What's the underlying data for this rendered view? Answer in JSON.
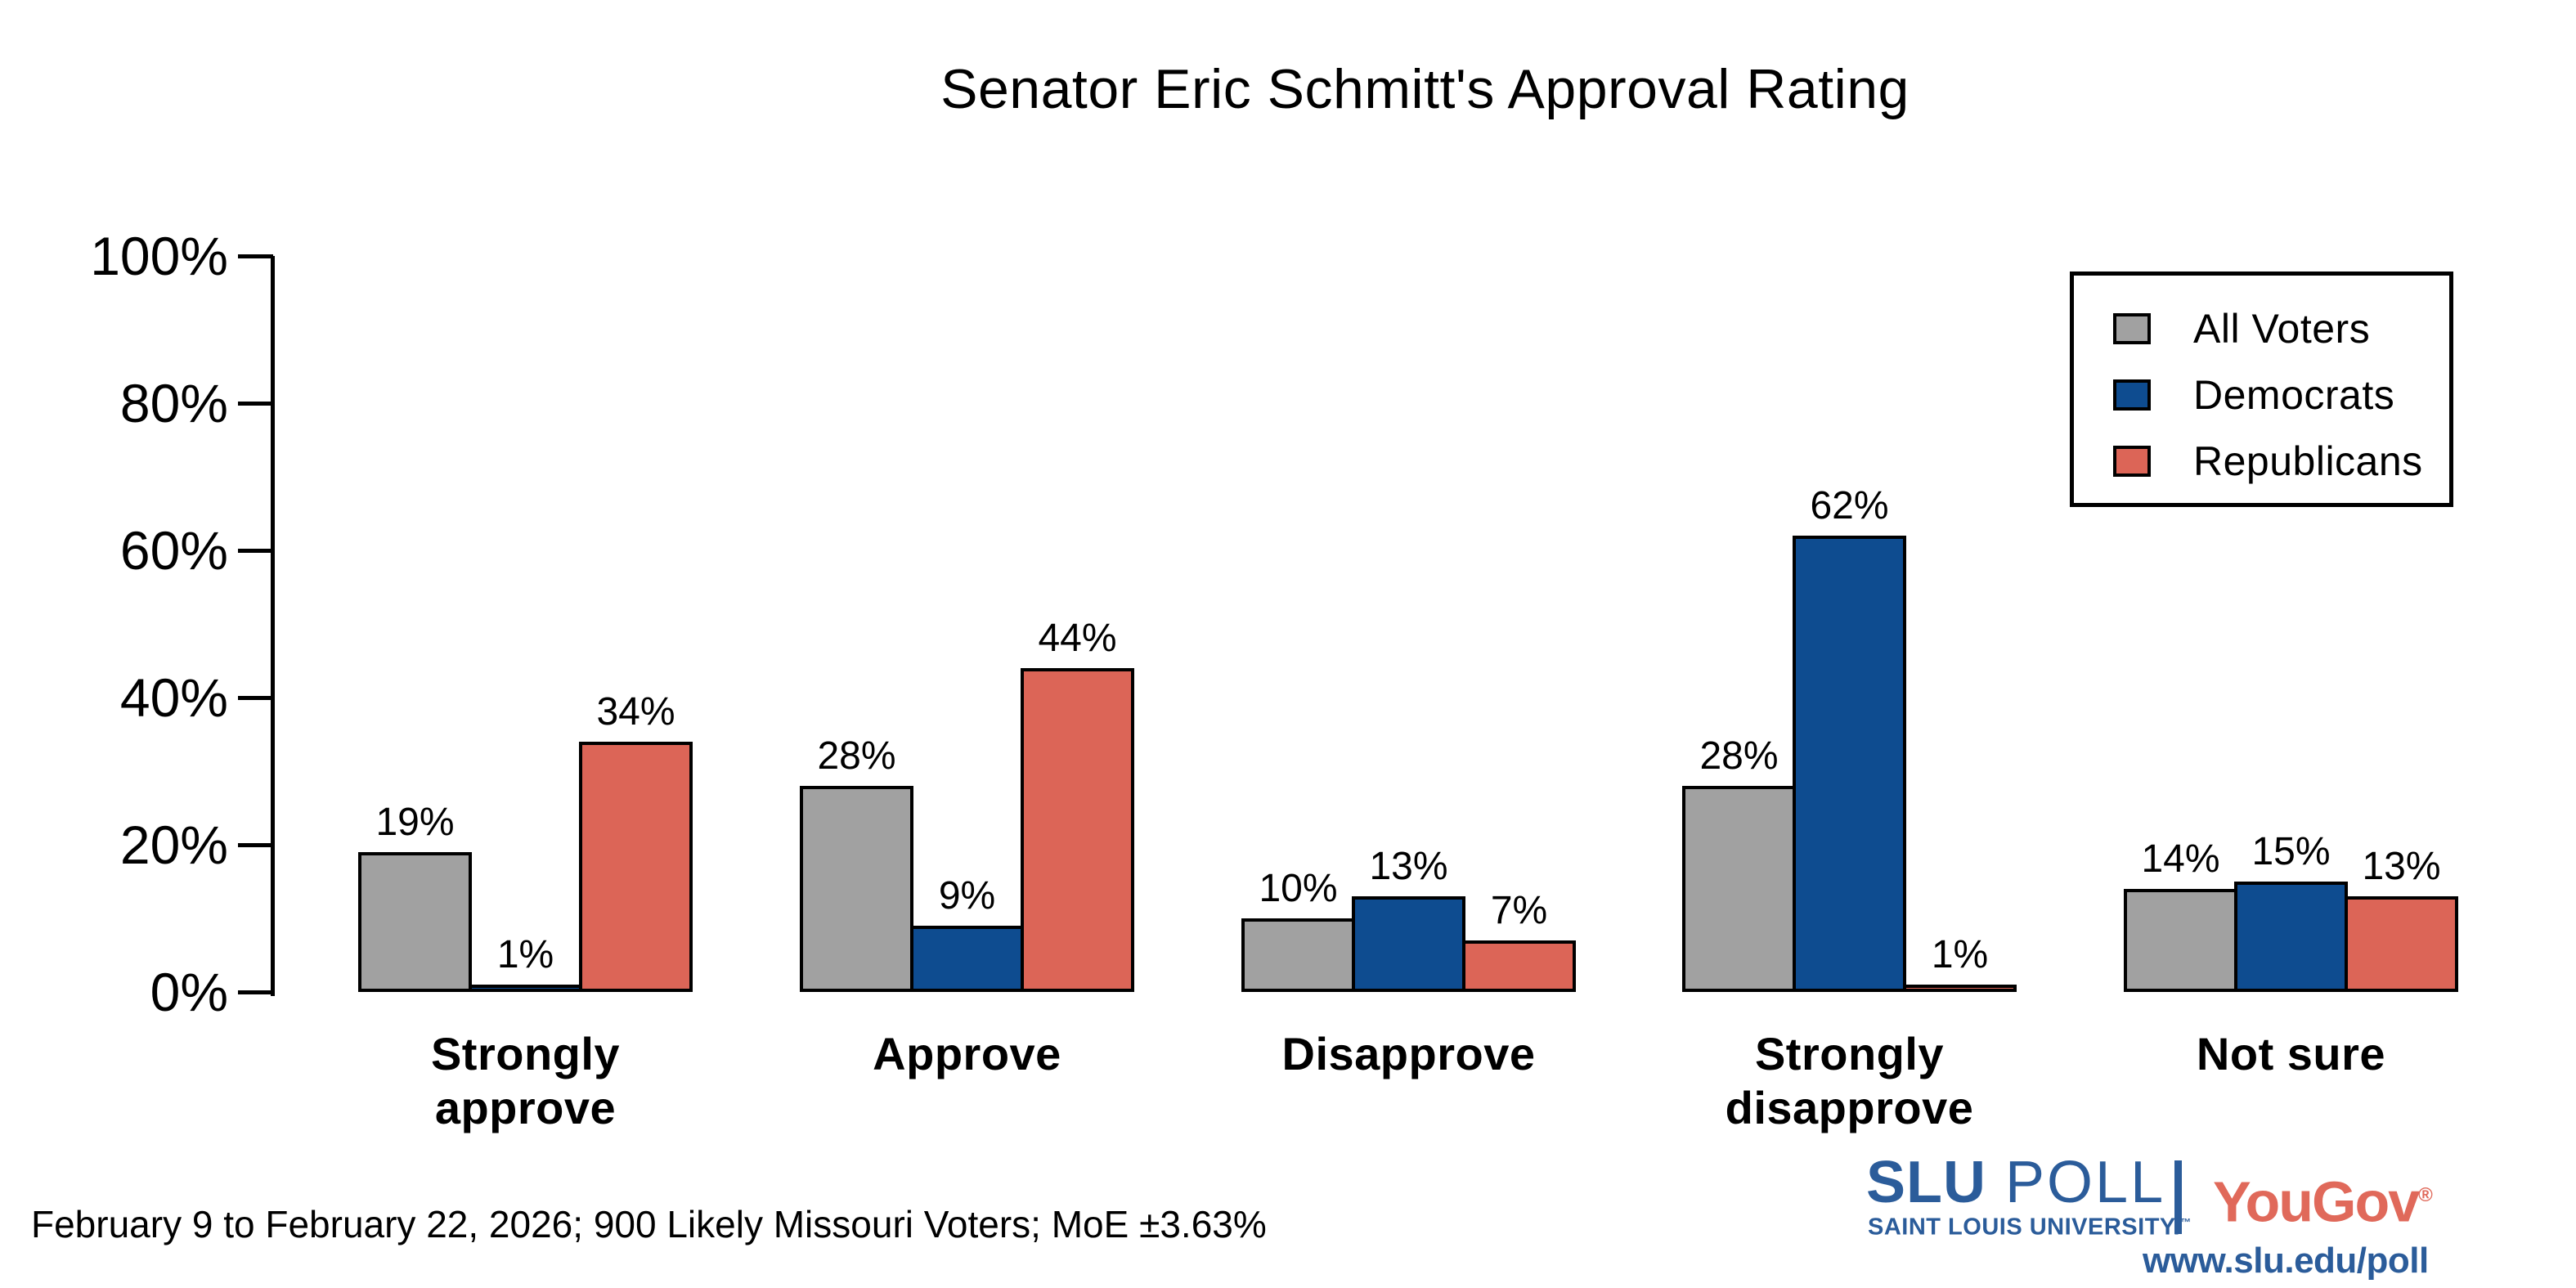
{
  "title": "Senator Eric Schmitt's Approval Rating",
  "chart_data": {
    "type": "bar",
    "categories": [
      "Strongly approve",
      "Approve",
      "Disapprove",
      "Strongly disapprove",
      "Not sure"
    ],
    "category_lines": [
      [
        "Strongly",
        "approve"
      ],
      [
        "Approve"
      ],
      [
        "Disapprove"
      ],
      [
        "Strongly",
        "disapprove"
      ],
      [
        "Not sure"
      ]
    ],
    "series": [
      {
        "name": "All Voters",
        "color": "#a1a1a1",
        "values": [
          19,
          28,
          10,
          28,
          14
        ]
      },
      {
        "name": "Democrats",
        "color": "#0e4c90",
        "values": [
          1,
          9,
          13,
          62,
          15
        ]
      },
      {
        "name": "Republicans",
        "color": "#dc6557",
        "values": [
          34,
          44,
          7,
          1,
          13
        ]
      }
    ],
    "value_suffix": "%",
    "ylim": [
      0,
      100
    ],
    "yticks": [
      "0%",
      "20%",
      "40%",
      "60%",
      "80%",
      "100%"
    ],
    "grid": false,
    "legend_position": "upper right",
    "bar_outline_color": "#000000"
  },
  "footer": {
    "note": "February 9 to February 22, 2026; 900 Likely Missouri Voters; MoE ±3.63%"
  },
  "branding": {
    "slu_bold": "SLU",
    "slu_rest": " POLL",
    "slu_sub": "SAINT LOUIS UNIVERSITY.",
    "slu_trademark": "™",
    "yougov": "YouGov",
    "yougov_reg": "®",
    "url": "www.slu.edu/poll",
    "slu_blue": "#2b5c9a",
    "yougov_red": "#e0695a"
  }
}
